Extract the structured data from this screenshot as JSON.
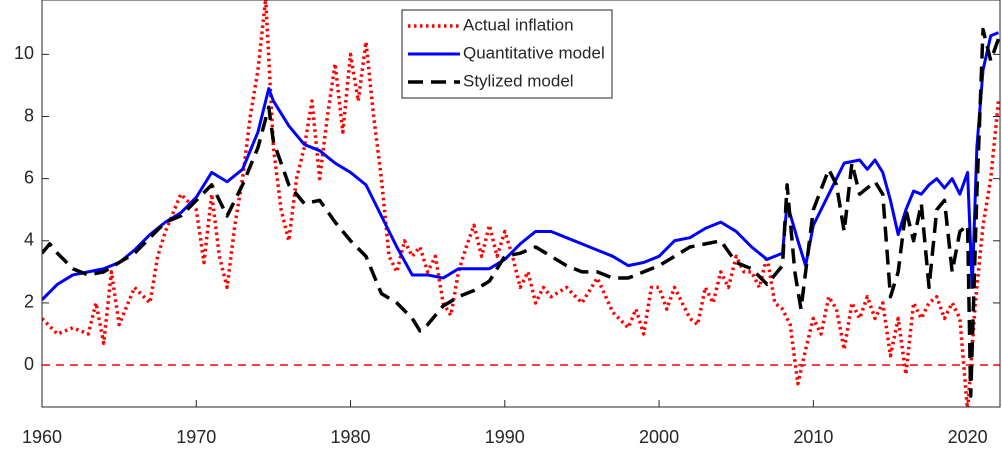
{
  "chart_data": {
    "type": "line",
    "xlim": [
      1960,
      2022.1
    ],
    "ylim": [
      -1.35,
      11.75
    ],
    "xticks": [
      1960,
      1970,
      1980,
      1990,
      2000,
      2010,
      2020
    ],
    "yticks": [
      0,
      2,
      4,
      6,
      8,
      10
    ],
    "reference_line": {
      "value": 0,
      "color": "#ff0000",
      "style": "dashed"
    },
    "legend": "top",
    "series": [
      {
        "name": "Actual inflation",
        "color": "#ff0000",
        "style": "dotted",
        "x": [
          1960,
          1961,
          1962,
          1963,
          1963.5,
          1964,
          1964.5,
          1965,
          1966,
          1967,
          1967.5,
          1968,
          1969,
          1970,
          1970.5,
          1971,
          1971.5,
          1972,
          1972.5,
          1973,
          1973.5,
          1974,
          1974.5,
          1975,
          1975.5,
          1976,
          1976.5,
          1977,
          1977.5,
          1978,
          1978.5,
          1979,
          1979.5,
          1980,
          1980.5,
          1981,
          1981.5,
          1982,
          1982.5,
          1983,
          1983.5,
          1984,
          1984.5,
          1985,
          1985.5,
          1986,
          1986.5,
          1987,
          1987.5,
          1988,
          1988.5,
          1989,
          1989.5,
          1990,
          1990.5,
          1991,
          1991.5,
          1992,
          1992.5,
          1993,
          1994,
          1995,
          1996,
          1997,
          1998,
          1998.5,
          1999,
          1999.5,
          2000,
          2000.5,
          2001,
          2001.5,
          2002,
          2002.5,
          2003,
          2003.5,
          2004,
          2004.5,
          2005,
          2005.5,
          2006,
          2006.5,
          2007,
          2007.5,
          2008,
          2008.5,
          2009,
          2009.5,
          2010,
          2010.5,
          2011,
          2011.5,
          2012,
          2012.5,
          2013,
          2013.5,
          2014,
          2014.5,
          2015,
          2015.5,
          2016,
          2016.5,
          2017,
          2017.5,
          2018,
          2018.5,
          2019,
          2019.5,
          2020,
          2020.5,
          2021,
          2021.5,
          2022
        ],
        "values": [
          1.5,
          1.0,
          1.2,
          1.0,
          2.0,
          0.7,
          3.0,
          1.3,
          2.5,
          2.0,
          3.5,
          4.3,
          5.5,
          5.0,
          3.3,
          5.5,
          3.5,
          2.5,
          4.5,
          6.0,
          8.0,
          9.5,
          11.8,
          7.0,
          5.0,
          4.0,
          6.0,
          7.0,
          8.5,
          6.0,
          8.0,
          9.7,
          7.5,
          10.0,
          8.5,
          10.4,
          8.0,
          6.0,
          3.5,
          3.0,
          4.0,
          3.5,
          3.8,
          3.0,
          3.5,
          2.0,
          1.6,
          3.0,
          3.8,
          4.5,
          3.5,
          4.5,
          3.5,
          4.3,
          3.5,
          2.5,
          3.0,
          2.0,
          2.5,
          2.2,
          2.5,
          2.0,
          2.8,
          1.7,
          1.2,
          1.8,
          1.0,
          2.5,
          2.5,
          1.8,
          2.5,
          2.0,
          1.5,
          1.3,
          2.5,
          2.0,
          3.0,
          2.5,
          3.5,
          3.0,
          3.0,
          2.5,
          3.5,
          2.0,
          1.8,
          1.3,
          -0.6,
          0.5,
          1.5,
          1.0,
          2.2,
          1.8,
          0.5,
          2.0,
          1.5,
          2.2,
          1.5,
          2.0,
          0.3,
          1.5,
          -0.3,
          2.0,
          1.5,
          2.0,
          2.2,
          1.5,
          2.0,
          1.5,
          -1.5,
          2.0,
          4.5,
          6.0,
          8.5
        ]
      },
      {
        "name": "Quantitative model",
        "color": "#0000ff",
        "style": "solid",
        "x": [
          1960,
          1961,
          1962,
          1963,
          1964,
          1965,
          1966,
          1967,
          1968,
          1969,
          1970,
          1970.5,
          1971,
          1972,
          1973,
          1974,
          1974.7,
          1975,
          1976,
          1977,
          1978,
          1979,
          1980,
          1981,
          1982,
          1983,
          1984,
          1985,
          1986,
          1987,
          1988,
          1989,
          1990,
          1991,
          1992,
          1993,
          1994,
          1995,
          1996,
          1997,
          1998,
          1999,
          2000,
          2001,
          2002,
          2003,
          2004,
          2005,
          2006,
          2007,
          2008,
          2008.3,
          2009,
          2009.5,
          2010,
          2011,
          2012,
          2013,
          2013.5,
          2014,
          2014.5,
          2015,
          2015.5,
          2016,
          2016.5,
          2017,
          2017.5,
          2018,
          2018.5,
          2019,
          2019.5,
          2020,
          2020.3,
          2020.6,
          2021,
          2021.5,
          2022
        ],
        "values": [
          2.1,
          2.6,
          2.9,
          3.0,
          3.1,
          3.3,
          3.7,
          4.2,
          4.6,
          4.9,
          5.4,
          5.8,
          6.2,
          5.9,
          6.3,
          7.5,
          8.9,
          8.5,
          7.7,
          7.1,
          6.9,
          6.5,
          6.2,
          5.8,
          4.8,
          3.8,
          2.9,
          2.9,
          2.8,
          3.1,
          3.1,
          3.1,
          3.4,
          3.9,
          4.3,
          4.3,
          4.1,
          3.9,
          3.7,
          3.5,
          3.2,
          3.3,
          3.5,
          4.0,
          4.1,
          4.4,
          4.6,
          4.3,
          3.8,
          3.4,
          3.6,
          5.2,
          4.0,
          3.2,
          4.5,
          5.5,
          6.5,
          6.6,
          6.3,
          6.6,
          6.2,
          5.3,
          4.2,
          5.0,
          5.6,
          5.5,
          5.8,
          6.0,
          5.7,
          6.0,
          5.5,
          6.2,
          2.5,
          7.0,
          9.5,
          10.6,
          10.7
        ]
      },
      {
        "name": "Stylized model",
        "color": "#000000",
        "style": "dashed",
        "x": [
          1960,
          1960.5,
          1961,
          1962,
          1963,
          1964,
          1965,
          1966,
          1967,
          1968,
          1969,
          1970,
          1971,
          1972,
          1973,
          1974,
          1974.7,
          1975,
          1976,
          1977,
          1978,
          1979,
          1980,
          1981,
          1982,
          1983,
          1984,
          1984.5,
          1985,
          1986,
          1987,
          1988,
          1989,
          1990,
          1991,
          1992,
          1993,
          1994,
          1995,
          1996,
          1997,
          1998,
          1999,
          2000,
          2001,
          2002,
          2003,
          2004,
          2005,
          2006,
          2007,
          2008,
          2008.3,
          2008.8,
          2009.2,
          2010,
          2011,
          2011.5,
          2012,
          2012.5,
          2013,
          2014,
          2014.5,
          2015,
          2015.5,
          2016,
          2016.5,
          2017,
          2017.5,
          2018,
          2018.5,
          2019,
          2019.5,
          2020,
          2020.2,
          2020.6,
          2021,
          2021.5,
          2022
        ],
        "values": [
          3.6,
          3.9,
          3.6,
          3.1,
          2.9,
          3.0,
          3.3,
          3.6,
          4.1,
          4.6,
          4.8,
          5.3,
          5.8,
          4.8,
          5.8,
          7.0,
          8.3,
          7.2,
          5.8,
          5.2,
          5.3,
          4.6,
          4.0,
          3.5,
          2.3,
          2.0,
          1.5,
          1.1,
          1.3,
          1.9,
          2.2,
          2.4,
          2.7,
          3.5,
          3.6,
          3.8,
          3.5,
          3.2,
          3.0,
          3.0,
          2.8,
          2.8,
          3.0,
          3.2,
          3.5,
          3.8,
          3.9,
          4.0,
          3.3,
          3.1,
          2.6,
          3.2,
          5.8,
          3.0,
          1.8,
          5.0,
          6.3,
          5.8,
          4.3,
          6.5,
          5.5,
          5.9,
          5.5,
          2.2,
          3.0,
          5.0,
          4.0,
          5.2,
          2.5,
          5.0,
          5.3,
          3.0,
          4.3,
          4.5,
          -1.0,
          5.5,
          10.8,
          9.8,
          10.5
        ]
      }
    ]
  }
}
